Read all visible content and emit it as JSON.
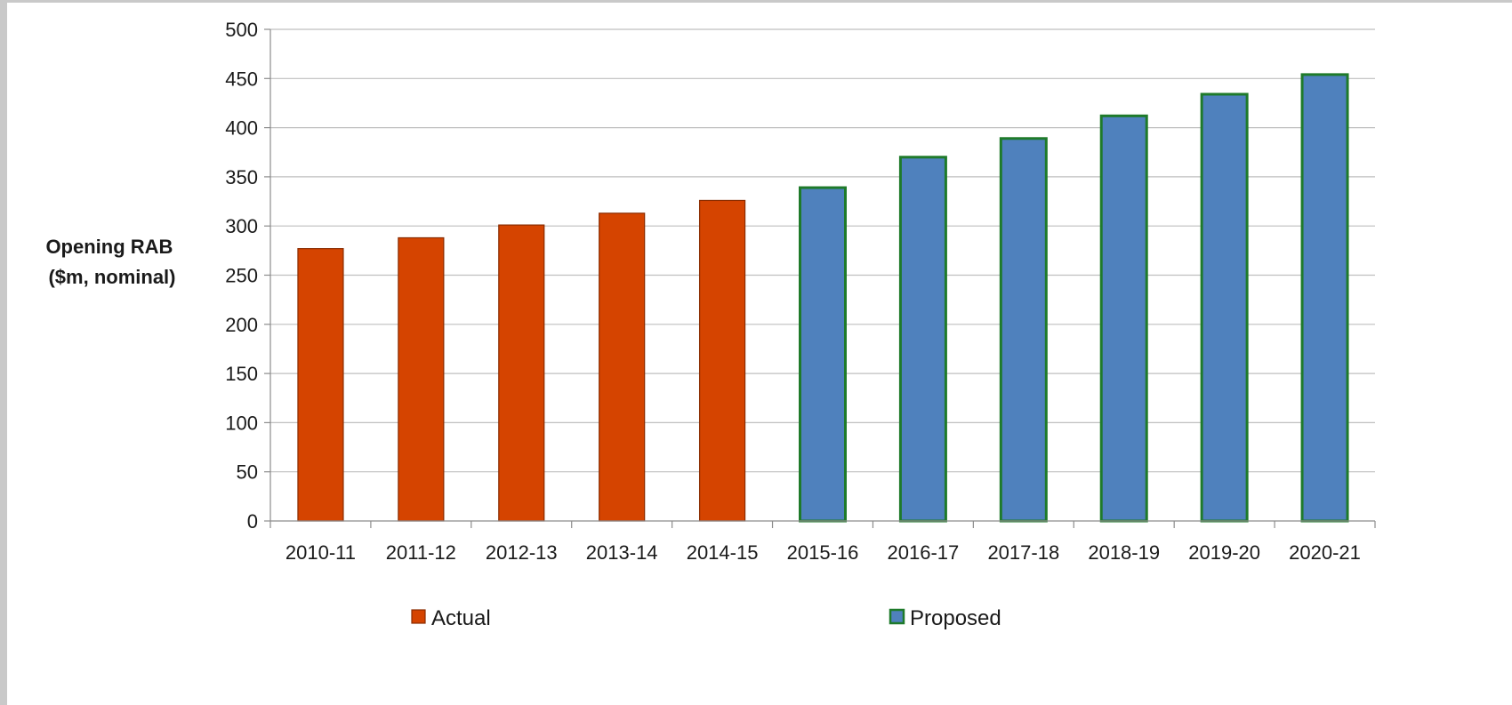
{
  "chart_data": {
    "type": "bar",
    "title": "",
    "xlabel": "",
    "ylabel": [
      "Opening RAB",
      "($m, nominal)"
    ],
    "ylim": [
      0,
      500
    ],
    "ytick_step": 50,
    "grid": true,
    "legend_position": "bottom",
    "categories": [
      "2010-11",
      "2011-12",
      "2012-13",
      "2013-14",
      "2014-15",
      "2015-16",
      "2016-17",
      "2017-18",
      "2018-19",
      "2019-20",
      "2020-21"
    ],
    "series": [
      {
        "name": "Actual",
        "color": "#d54400",
        "edge_color": "#8a2c00",
        "values": [
          277,
          288,
          301,
          313,
          326,
          null,
          null,
          null,
          null,
          null,
          null
        ]
      },
      {
        "name": "Proposed",
        "color": "#4f81bd",
        "edge_color": "#1e7a2a",
        "values": [
          null,
          null,
          null,
          null,
          null,
          339,
          370,
          389,
          412,
          434,
          454
        ]
      }
    ]
  }
}
